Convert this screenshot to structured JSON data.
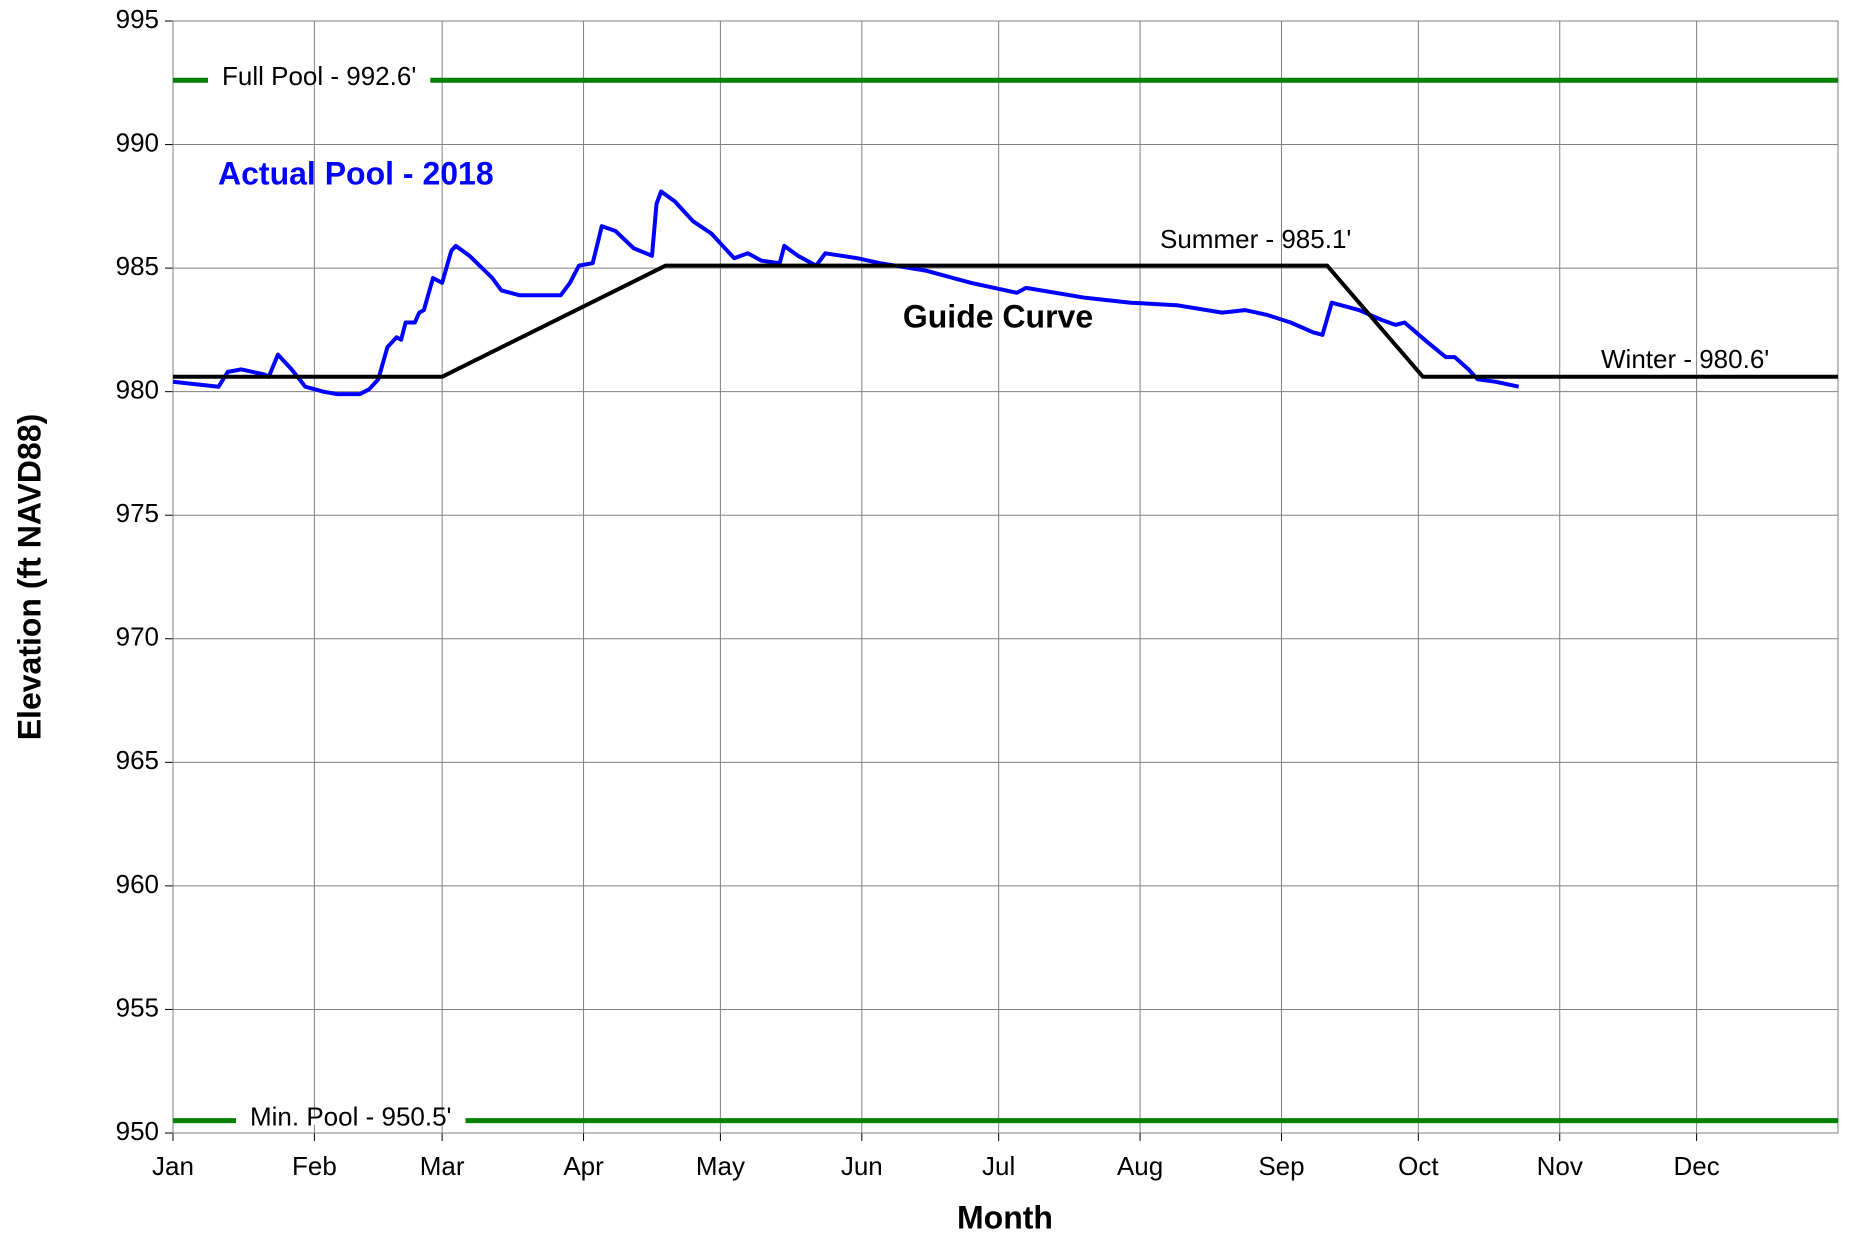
{
  "chart_data": {
    "type": "line",
    "xlabel": "Month",
    "ylabel": "Elevation (ft NAVD88)",
    "xlim": [
      0,
      365
    ],
    "xticks": [
      {
        "value": 0,
        "label": "Jan"
      },
      {
        "value": 31,
        "label": "Feb"
      },
      {
        "value": 59,
        "label": "Mar"
      },
      {
        "value": 90,
        "label": "Apr"
      },
      {
        "value": 120,
        "label": "May"
      },
      {
        "value": 151,
        "label": "Jun"
      },
      {
        "value": 181,
        "label": "Jul"
      },
      {
        "value": 212,
        "label": "Aug"
      },
      {
        "value": 243,
        "label": "Sep"
      },
      {
        "value": 273,
        "label": "Oct"
      },
      {
        "value": 304,
        "label": "Nov"
      },
      {
        "value": 334,
        "label": "Dec"
      }
    ],
    "ylim": [
      950,
      995
    ],
    "yticks": [
      950,
      955,
      960,
      965,
      970,
      975,
      980,
      985,
      990,
      995
    ],
    "grid": true,
    "series": [
      {
        "name": "Actual Pool - 2018",
        "color": "#0000ff",
        "x": [
          0,
          5,
          10,
          12,
          15,
          20,
          21,
          23,
          26,
          29,
          33,
          36,
          41,
          43,
          45,
          47,
          49,
          50,
          51,
          53,
          54,
          55,
          57,
          59,
          61,
          62,
          65,
          70,
          72,
          76,
          85,
          87,
          89,
          92,
          94,
          97,
          101,
          105,
          106,
          107,
          110,
          114,
          118,
          121,
          123,
          126,
          129,
          133,
          134,
          137,
          141,
          143,
          150,
          155,
          165,
          175,
          185,
          187,
          200,
          210,
          220,
          230,
          235,
          240,
          245,
          250,
          252,
          254,
          260,
          265,
          268,
          270,
          275,
          279,
          281,
          284,
          286,
          290,
          295
        ],
        "values": [
          980.4,
          980.3,
          980.2,
          980.8,
          980.9,
          980.7,
          980.6,
          981.5,
          980.9,
          980.2,
          980.0,
          979.9,
          979.9,
          980.1,
          980.5,
          981.8,
          982.2,
          982.1,
          982.8,
          982.8,
          983.2,
          983.3,
          984.6,
          984.4,
          985.7,
          985.9,
          985.5,
          984.6,
          984.1,
          983.9,
          983.9,
          984.4,
          985.1,
          985.2,
          986.7,
          986.5,
          985.8,
          985.5,
          987.6,
          988.1,
          987.7,
          986.9,
          986.4,
          985.8,
          985.4,
          985.6,
          985.3,
          985.2,
          985.9,
          985.5,
          985.1,
          985.6,
          985.4,
          985.2,
          984.9,
          984.4,
          984.0,
          984.2,
          983.8,
          983.6,
          983.5,
          983.2,
          983.3,
          983.1,
          982.8,
          982.4,
          982.3,
          983.6,
          983.3,
          982.9,
          982.7,
          982.8,
          982.0,
          981.4,
          981.4,
          980.9,
          980.5,
          980.4,
          980.2
        ]
      },
      {
        "name": "Guide Curve",
        "color": "#000000",
        "x": [
          0,
          59,
          108,
          253,
          274,
          365
        ],
        "values": [
          980.6,
          980.6,
          985.1,
          985.1,
          980.6,
          980.6
        ]
      }
    ],
    "reference_lines": [
      {
        "label": "Full Pool - 992.6'",
        "value": 992.6,
        "color": "#008000"
      },
      {
        "label": "Min. Pool - 950.5'",
        "value": 950.5,
        "color": "#008000"
      }
    ],
    "annotations": [
      "Summer - 985.1'",
      "Winter - 980.6'"
    ]
  }
}
